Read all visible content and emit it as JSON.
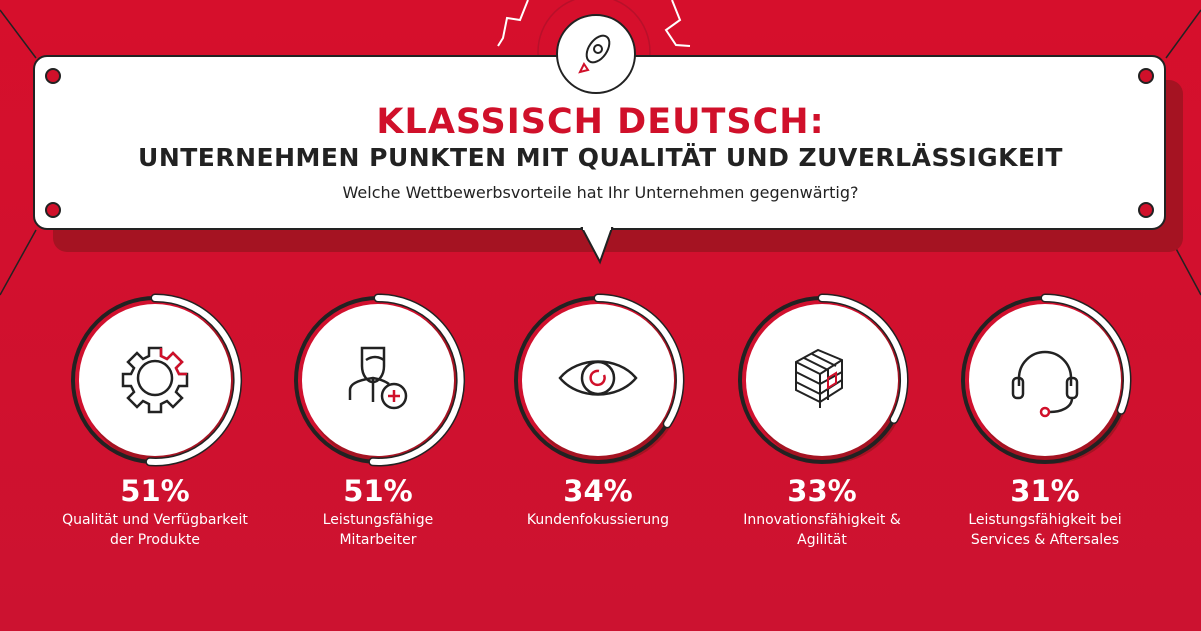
{
  "header": {
    "title": "KLASSISCH DEUTSCH:",
    "subtitle": "UNTERNEHMEN PUNKTEN MIT QUALITÄT UND ZUVERLÄSSIGKEIT",
    "question": "Welche Wettbewerbsvorteile hat Ihr Unternehmen gegenwärtig?",
    "icon": "rocket-icon"
  },
  "colors": {
    "background": "#d0102a",
    "accent": "#d0102a",
    "dark": "#222222",
    "white": "#ffffff"
  },
  "chart_data": {
    "type": "ring",
    "title": "Welche Wettbewerbsvorteile hat Ihr Unternehmen gegenwärtig?",
    "unit": "%",
    "categories": [
      "Qualität und Verfügbarkeit\nder Produkte",
      "Leistungsfähige\nMitarbeiter",
      "Kundenfokussierung",
      "Innovationsfähigkeit &\nAgilität",
      "Leistungsfähigkeit bei\nServices & Aftersales"
    ],
    "values": [
      51,
      51,
      34,
      33,
      31
    ],
    "labels": [
      "51%",
      "51%",
      "34%",
      "33%",
      "31%"
    ],
    "icons": [
      "gear-icon",
      "employee-icon",
      "eye-icon",
      "cube-icon",
      "headset-icon"
    ]
  }
}
